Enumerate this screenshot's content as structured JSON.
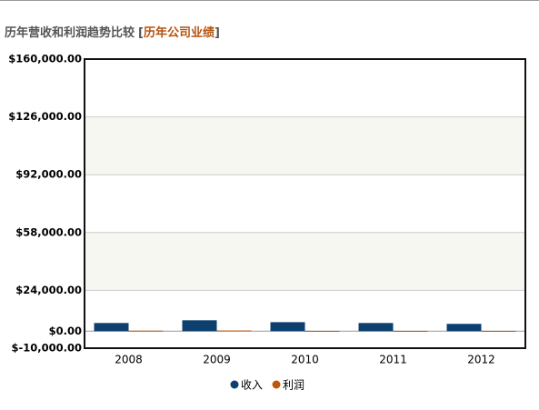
{
  "chart_data": {
    "type": "bar",
    "title": "历年营收和利润趋势比较",
    "subtitle": "[历年公司业绩]",
    "categories": [
      "2008",
      "2009",
      "2010",
      "2011",
      "2012"
    ],
    "series": [
      {
        "name": "收入",
        "color": "#0d3f6f",
        "values": [
          4800,
          6400,
          5300,
          4800,
          4300
        ]
      },
      {
        "name": "利润",
        "color": "#c0560c",
        "values": [
          300,
          400,
          200,
          200,
          200
        ]
      }
    ],
    "ylim": [
      -10000,
      160000
    ],
    "yticks": [
      {
        "value": -10000,
        "label": "$-10,000.00"
      },
      {
        "value": 0,
        "label": "$0.00"
      },
      {
        "value": 24000,
        "label": "$24,000.00"
      },
      {
        "value": 58000,
        "label": "$58,000.00"
      },
      {
        "value": 92000,
        "label": "$92,000.00"
      },
      {
        "value": 126000,
        "label": "$126,000.00"
      },
      {
        "value": 160000,
        "label": "$160,000.00"
      }
    ],
    "grid": true
  }
}
